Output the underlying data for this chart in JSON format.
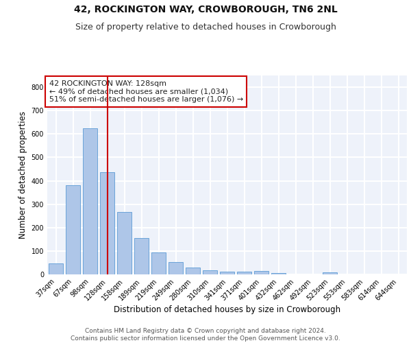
{
  "title1": "42, ROCKINGTON WAY, CROWBOROUGH, TN6 2NL",
  "title2": "Size of property relative to detached houses in Crowborough",
  "xlabel": "Distribution of detached houses by size in Crowborough",
  "ylabel": "Number of detached properties",
  "categories": [
    "37sqm",
    "67sqm",
    "98sqm",
    "128sqm",
    "158sqm",
    "189sqm",
    "219sqm",
    "249sqm",
    "280sqm",
    "310sqm",
    "341sqm",
    "371sqm",
    "401sqm",
    "432sqm",
    "462sqm",
    "492sqm",
    "523sqm",
    "553sqm",
    "583sqm",
    "614sqm",
    "644sqm"
  ],
  "values": [
    47,
    382,
    624,
    438,
    268,
    155,
    95,
    53,
    28,
    18,
    12,
    12,
    15,
    7,
    0,
    0,
    8,
    0,
    0,
    0,
    0
  ],
  "bar_color": "#aec6e8",
  "bar_edgecolor": "#5b9bd5",
  "vline_color": "#cc0000",
  "vline_bar_index": 3,
  "annotation_text": "42 ROCKINGTON WAY: 128sqm\n← 49% of detached houses are smaller (1,034)\n51% of semi-detached houses are larger (1,076) →",
  "annotation_box_edgecolor": "#cc0000",
  "ylim": [
    0,
    850
  ],
  "yticks": [
    0,
    100,
    200,
    300,
    400,
    500,
    600,
    700,
    800
  ],
  "background_color": "#eef2fa",
  "grid_color": "#ffffff",
  "footer": "Contains HM Land Registry data © Crown copyright and database right 2024.\nContains public sector information licensed under the Open Government Licence v3.0.",
  "title1_fontsize": 10,
  "title2_fontsize": 9,
  "xlabel_fontsize": 8.5,
  "ylabel_fontsize": 8.5,
  "annotation_fontsize": 8,
  "footer_fontsize": 6.5,
  "tick_fontsize": 7
}
